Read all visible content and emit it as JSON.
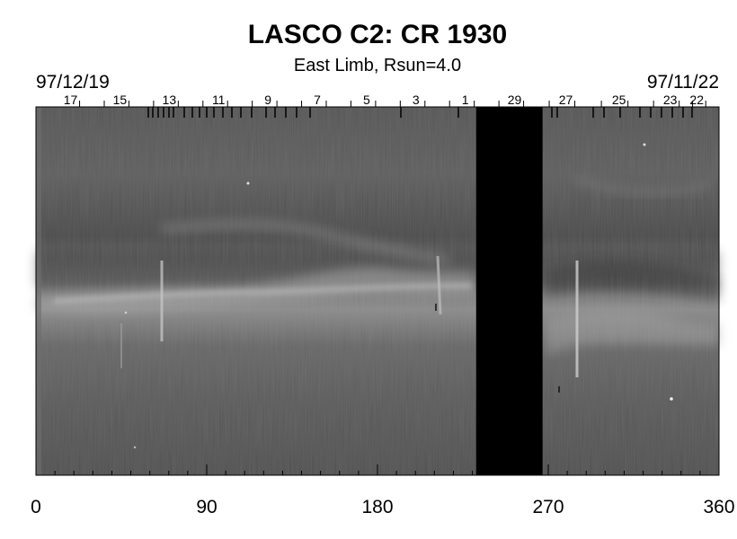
{
  "chart_data": {
    "type": "heatmap",
    "title": "LASCO C2: CR 1930",
    "subtitle": "East Limb, Rsun=4.0",
    "date_start_label": "97/12/19",
    "date_end_label": "97/11/22",
    "xlim": [
      0,
      360
    ],
    "x_ticks": [
      0,
      90,
      180,
      270,
      360
    ],
    "x_tick_labels": [
      "0",
      "90",
      "180",
      "270",
      "360"
    ],
    "day_ticks": [
      {
        "label": "17",
        "x": 23
      },
      {
        "label": "15",
        "x": 49
      },
      {
        "label": "13",
        "x": 75
      },
      {
        "label": "11",
        "x": 101
      },
      {
        "label": "9",
        "x": 127
      },
      {
        "label": "7",
        "x": 153
      },
      {
        "label": "5",
        "x": 179
      },
      {
        "label": "3",
        "x": 205
      },
      {
        "label": "1",
        "x": 231
      },
      {
        "label": "29",
        "x": 257
      },
      {
        "label": "27",
        "x": 284
      },
      {
        "label": "25",
        "x": 312
      },
      {
        "label": "23",
        "x": 339
      },
      {
        "label": "22",
        "x": 353
      }
    ],
    "data_gap": [
      232,
      267
    ],
    "colormap": "grayscale",
    "grid": false
  }
}
